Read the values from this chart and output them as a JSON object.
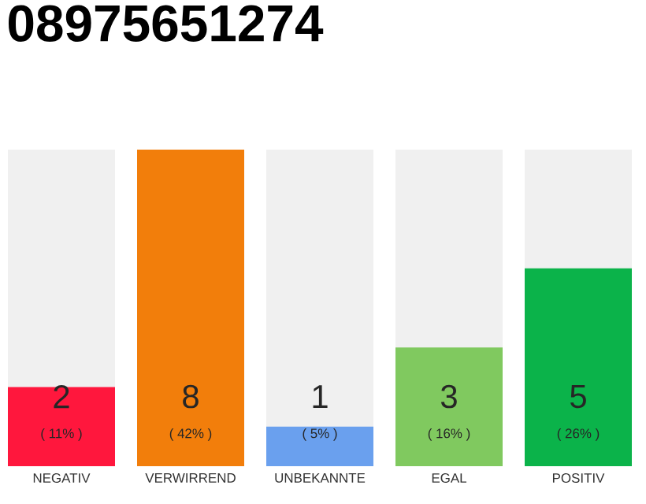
{
  "chart_data": {
    "type": "bar",
    "title": "08975651274",
    "categories": [
      "NEGATIV",
      "VERWIRREND",
      "UNBEKANNTE",
      "EGAL",
      "POSITIV"
    ],
    "values": [
      2,
      8,
      1,
      3,
      5
    ],
    "colors": [
      "#ff173d",
      "#f27e0b",
      "#6aa0ee",
      "#80c95f",
      "#0bb34a"
    ],
    "data_labels": true,
    "annotations": [
      "( 11% )",
      "( 42% )",
      "( 5% )",
      "( 16% )",
      "( 26% )"
    ]
  }
}
